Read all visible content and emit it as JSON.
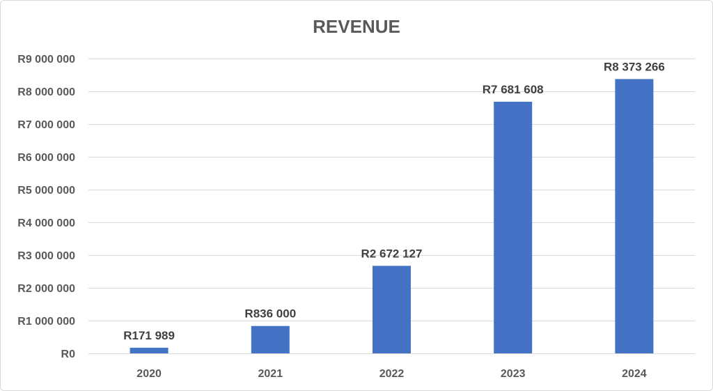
{
  "chart_data": {
    "type": "bar",
    "title": "REVENUE",
    "xlabel": "",
    "ylabel": "",
    "categories": [
      "2020",
      "2021",
      "2022",
      "2023",
      "2024"
    ],
    "values": [
      171989,
      836000,
      2672127,
      7681608,
      8373266
    ],
    "data_labels": [
      "R171 989",
      "R836 000",
      "R2 672 127",
      "R7 681 608",
      "R8 373 266"
    ],
    "ylim": [
      0,
      9000000
    ],
    "yticks": [
      0,
      1000000,
      2000000,
      3000000,
      4000000,
      5000000,
      6000000,
      7000000,
      8000000,
      9000000
    ],
    "ytick_labels": [
      "R0",
      "R1 000 000",
      "R2 000 000",
      "R3 000 000",
      "R4 000 000",
      "R5 000 000",
      "R6 000 000",
      "R7 000 000",
      "R8 000 000",
      "R9 000 000"
    ],
    "grid": true,
    "legend": "none",
    "bar_color": "#4472c4"
  }
}
